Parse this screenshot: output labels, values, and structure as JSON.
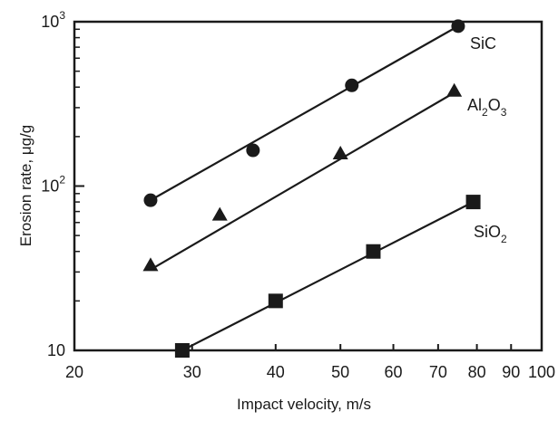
{
  "chart_data": {
    "type": "scatter",
    "title": "",
    "xlabel": "Impact velocity, m/s",
    "ylabel": "Erosion rate, μg/g",
    "xscale": "log",
    "yscale": "log",
    "xlim": [
      20,
      100
    ],
    "ylim": [
      10,
      1000
    ],
    "grid": false,
    "x_ticks": [
      {
        "value": 20,
        "label": "20"
      },
      {
        "value": 30,
        "label": "30"
      },
      {
        "value": 40,
        "label": "40"
      },
      {
        "value": 50,
        "label": "50"
      },
      {
        "value": 60,
        "label": "60"
      },
      {
        "value": 70,
        "label": "70"
      },
      {
        "value": 80,
        "label": "80"
      },
      {
        "value": 90,
        "label": "90"
      },
      {
        "value": 100,
        "label": "100"
      }
    ],
    "y_ticks": [
      {
        "value": 10,
        "base": "10",
        "exp": ""
      },
      {
        "value": 100,
        "base": "10",
        "exp": "2"
      },
      {
        "value": 1000,
        "base": "10",
        "exp": "3"
      }
    ],
    "series": [
      {
        "name": "SiC",
        "label_parts": [
          {
            "text": "SiC",
            "sub": false
          }
        ],
        "marker": "circle",
        "points": [
          [
            26,
            82
          ],
          [
            37,
            165
          ],
          [
            52,
            410
          ],
          [
            75,
            940
          ]
        ],
        "fit": [
          [
            26,
            82
          ],
          [
            75,
            940
          ]
        ]
      },
      {
        "name": "Al2O3",
        "label_parts": [
          {
            "text": "Al",
            "sub": false
          },
          {
            "text": "2",
            "sub": true
          },
          {
            "text": "O",
            "sub": false
          },
          {
            "text": "3",
            "sub": true
          }
        ],
        "marker": "triangle",
        "points": [
          [
            26,
            33
          ],
          [
            33,
            67
          ],
          [
            50,
            158
          ],
          [
            74,
            380
          ]
        ],
        "fit": [
          [
            26,
            31
          ],
          [
            74,
            370
          ]
        ]
      },
      {
        "name": "SiO2",
        "label_parts": [
          {
            "text": "SiO",
            "sub": false
          },
          {
            "text": "2",
            "sub": true
          }
        ],
        "marker": "square",
        "points": [
          [
            29,
            10
          ],
          [
            40,
            20
          ],
          [
            56,
            40
          ],
          [
            79,
            80
          ]
        ],
        "fit": [
          [
            29,
            10
          ],
          [
            79,
            80
          ]
        ]
      }
    ]
  }
}
